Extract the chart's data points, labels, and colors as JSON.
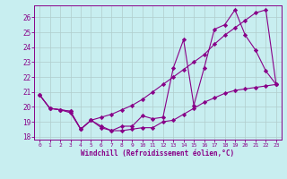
{
  "xlabel": "Windchill (Refroidissement éolien,°C)",
  "background_color": "#c8eef0",
  "line_color": "#880088",
  "grid_color": "#b0cccc",
  "xlim": [
    -0.5,
    23.5
  ],
  "ylim": [
    17.8,
    26.8
  ],
  "yticks": [
    18,
    19,
    20,
    21,
    22,
    23,
    24,
    25,
    26
  ],
  "xticks": [
    0,
    1,
    2,
    3,
    4,
    5,
    6,
    7,
    8,
    9,
    10,
    11,
    12,
    13,
    14,
    15,
    16,
    17,
    18,
    19,
    20,
    21,
    22,
    23
  ],
  "series": [
    {
      "x": [
        0,
        1,
        2,
        3,
        4,
        5,
        6,
        7,
        8,
        9,
        10,
        11,
        12,
        13,
        14,
        15,
        16,
        17,
        18,
        19,
        20,
        21,
        22,
        23
      ],
      "y": [
        20.8,
        19.9,
        19.8,
        19.7,
        18.5,
        19.1,
        18.6,
        18.4,
        18.4,
        18.5,
        18.6,
        18.6,
        19.0,
        19.1,
        19.5,
        19.9,
        20.3,
        20.6,
        20.9,
        21.1,
        21.2,
        21.3,
        21.4,
        21.5
      ]
    },
    {
      "x": [
        0,
        1,
        2,
        3,
        4,
        5,
        6,
        7,
        8,
        9,
        10,
        11,
        12,
        13,
        14,
        15,
        16,
        17,
        18,
        19,
        20,
        21,
        22,
        23
      ],
      "y": [
        20.8,
        19.9,
        19.8,
        19.7,
        18.5,
        19.1,
        19.3,
        19.5,
        19.8,
        20.1,
        20.5,
        21.0,
        21.5,
        22.0,
        22.5,
        23.0,
        23.5,
        24.2,
        24.8,
        25.3,
        25.8,
        26.3,
        26.5,
        21.5
      ]
    },
    {
      "x": [
        0,
        1,
        2,
        3,
        4,
        5,
        6,
        7,
        8,
        9,
        10,
        11,
        12,
        13,
        14,
        15,
        16,
        17,
        18,
        19,
        20,
        21,
        22,
        23
      ],
      "y": [
        20.8,
        19.9,
        19.8,
        19.6,
        18.5,
        19.1,
        18.7,
        18.4,
        18.7,
        18.7,
        19.4,
        19.2,
        19.3,
        22.6,
        24.5,
        20.1,
        22.6,
        25.2,
        25.5,
        26.5,
        24.8,
        23.8,
        22.4,
        21.5
      ]
    }
  ]
}
